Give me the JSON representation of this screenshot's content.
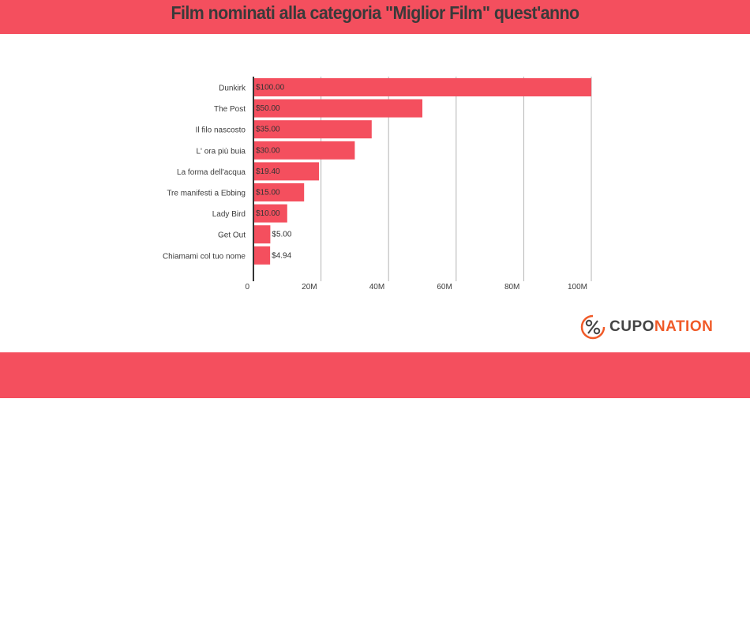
{
  "header": {
    "title": "Film nominati alla categoria \"Miglior Film\" quest'anno"
  },
  "chart_data": {
    "type": "bar",
    "orientation": "horizontal",
    "title": "Film nominati alla categoria \"Miglior Film\" quest'anno",
    "categories": [
      "Dunkirk",
      "The Post",
      "Il filo nascosto",
      "L' ora più buia",
      "La forma dell'acqua",
      "Tre manifesti a Ebbing",
      "Lady Bird",
      "Get Out",
      "Chiamami col tuo nome"
    ],
    "values": [
      100,
      50,
      35,
      30,
      19.4,
      15,
      10,
      5,
      4.94
    ],
    "data_labels": [
      "$100.00",
      "$50.00",
      "$35.00",
      "$30.00",
      "$19.40",
      "$15.00",
      "$10.00",
      "$5.00",
      "$4.94"
    ],
    "x_ticks": [
      0,
      20,
      40,
      60,
      80,
      100
    ],
    "x_tick_labels": [
      "0",
      "20M",
      "40M",
      "60M",
      "80M",
      "100M"
    ],
    "xlim": [
      0,
      100
    ],
    "grid": "vertical",
    "bar_color": "#f44f5e"
  },
  "brand": {
    "name_part1": "CUPO",
    "name_part2": "NATION",
    "icon": "percent-logo-icon",
    "accent_color": "#f05a28"
  },
  "colors": {
    "banner": "#f44f5e",
    "title_text": "#3a3a3a"
  }
}
